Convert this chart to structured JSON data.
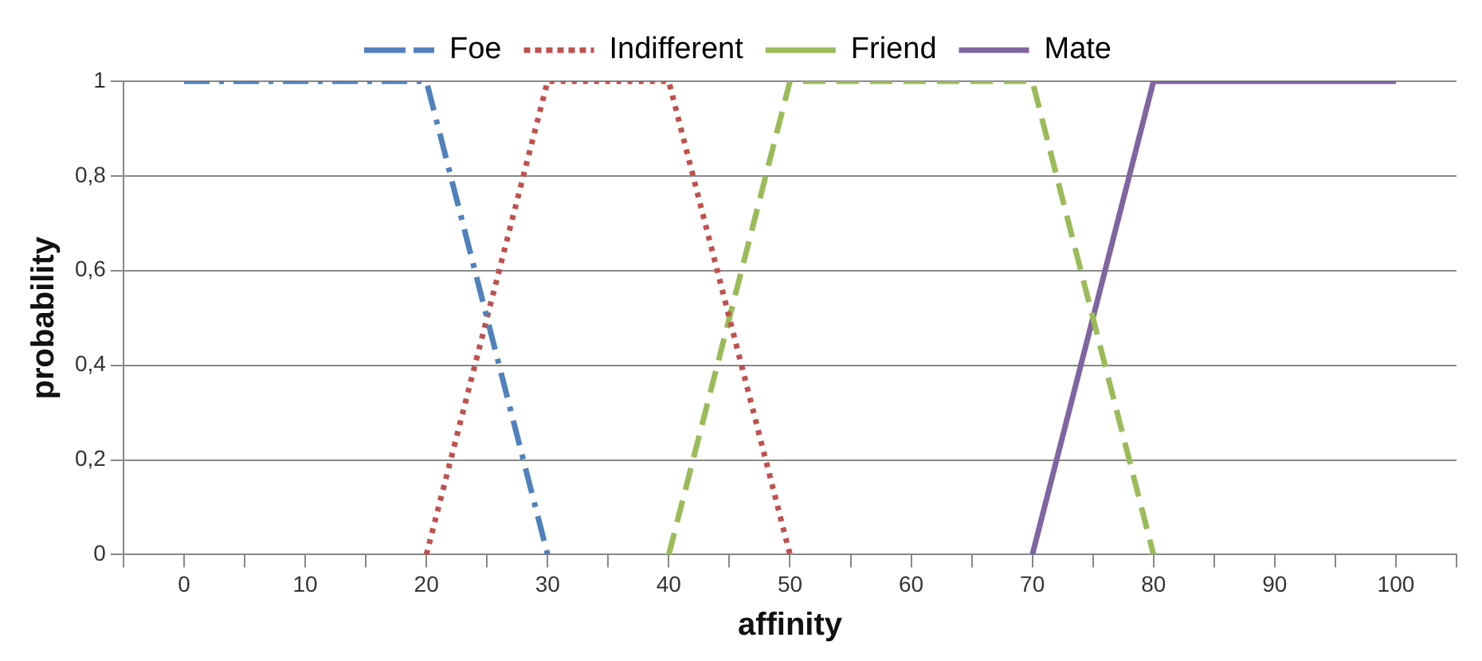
{
  "chart_data": {
    "type": "line",
    "xlabel": "affinity",
    "ylabel": "probability",
    "legend": "top",
    "grid": "y",
    "marker": "none",
    "xlim": [
      -5,
      105
    ],
    "xticks": [
      {
        "value": -5,
        "label": null
      },
      0,
      {
        "value": 5,
        "label": null
      },
      10,
      {
        "value": 15,
        "label": null
      },
      20,
      {
        "value": 25,
        "label": null
      },
      30,
      {
        "value": 35,
        "label": null
      },
      40,
      {
        "value": 45,
        "label": null
      },
      50,
      {
        "value": 55,
        "label": null
      },
      60,
      {
        "value": 65,
        "label": null
      },
      70,
      {
        "value": 75,
        "label": null
      },
      80,
      {
        "value": 85,
        "label": null
      },
      90,
      {
        "value": 95,
        "label": null
      },
      100,
      {
        "value": 105,
        "label": null
      }
    ],
    "ylim": [
      0,
      1
    ],
    "yticks": [
      0,
      {
        "value": 0.2,
        "label": "0,2"
      },
      {
        "value": 0.4,
        "label": "0,4"
      },
      {
        "value": 0.6,
        "label": "0,6"
      },
      {
        "value": 0.8,
        "label": "0,8"
      },
      1
    ],
    "series": [
      {
        "name": "Foe",
        "color": "#4f81bd",
        "line_style": "dashdot",
        "x": [
          0,
          20,
          30
        ],
        "values": [
          1,
          1,
          0
        ]
      },
      {
        "name": "Indifferent",
        "color": "#c0504d",
        "line_style": "dotted",
        "x": [
          20,
          30,
          40,
          50
        ],
        "values": [
          0,
          1,
          1,
          0
        ]
      },
      {
        "name": "Friend",
        "color": "#9bbb59",
        "line_style": "dashed",
        "x": [
          40,
          50,
          70,
          80
        ],
        "values": [
          0,
          1,
          1,
          0
        ]
      },
      {
        "name": "Mate",
        "color": "#8064a2",
        "line_style": "solid",
        "x": [
          70,
          80,
          100
        ],
        "values": [
          0,
          1,
          1
        ]
      }
    ]
  }
}
